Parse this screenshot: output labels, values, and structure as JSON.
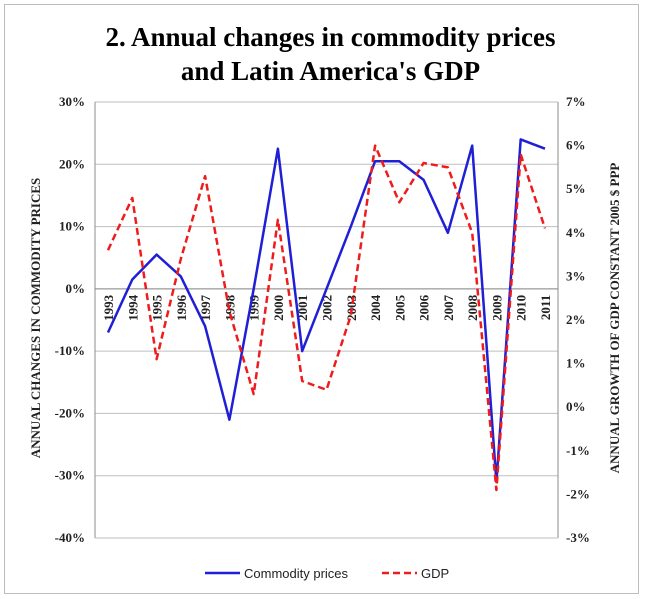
{
  "chart_data": {
    "type": "line",
    "title_line1": "2. Annual changes in commodity prices",
    "title_line2": "and Latin America's GDP",
    "ylabel_left": "ANNUAL CHANGES IN COMMODITY PRICES",
    "ylabel_right": "ANNUAL GROWTH OF GDP CONSTANT 2005 $ PPP",
    "ylim_left": [
      -40,
      30
    ],
    "ylim_right": [
      -3,
      7
    ],
    "yticks_left": [
      "30%",
      "20%",
      "10%",
      "0%",
      "-10%",
      "-20%",
      "-30%",
      "-40%"
    ],
    "yticks_right": [
      "7%",
      "6%",
      "5%",
      "4%",
      "3%",
      "2%",
      "1%",
      "0%",
      "-1%",
      "-2%",
      "-3%"
    ],
    "categories": [
      "1993",
      "1994",
      "1995",
      "1996",
      "1997",
      "1998",
      "1999",
      "2000",
      "2001",
      "2002",
      "2003",
      "2004",
      "2005",
      "2006",
      "2007",
      "2008",
      "2009",
      "2010",
      "2011"
    ],
    "series": [
      {
        "name": "Commodity prices",
        "axis": "left",
        "color": "#1f1fd6",
        "style": "solid",
        "values": [
          -7,
          1.5,
          5.5,
          2,
          -6,
          -21,
          0,
          22.5,
          -10,
          0,
          10,
          20.5,
          20.5,
          17.5,
          9,
          23,
          -31,
          24,
          22.5
        ]
      },
      {
        "name": "GDP",
        "axis": "right",
        "color": "#ee1c1c",
        "style": "dashed",
        "values": [
          3.6,
          4.8,
          1.1,
          3.4,
          5.3,
          2.2,
          0.3,
          4.3,
          0.6,
          0.4,
          2.1,
          6.0,
          4.7,
          5.6,
          5.5,
          4.0,
          -1.9,
          5.8,
          4.1
        ]
      }
    ],
    "legend_position": "bottom"
  }
}
